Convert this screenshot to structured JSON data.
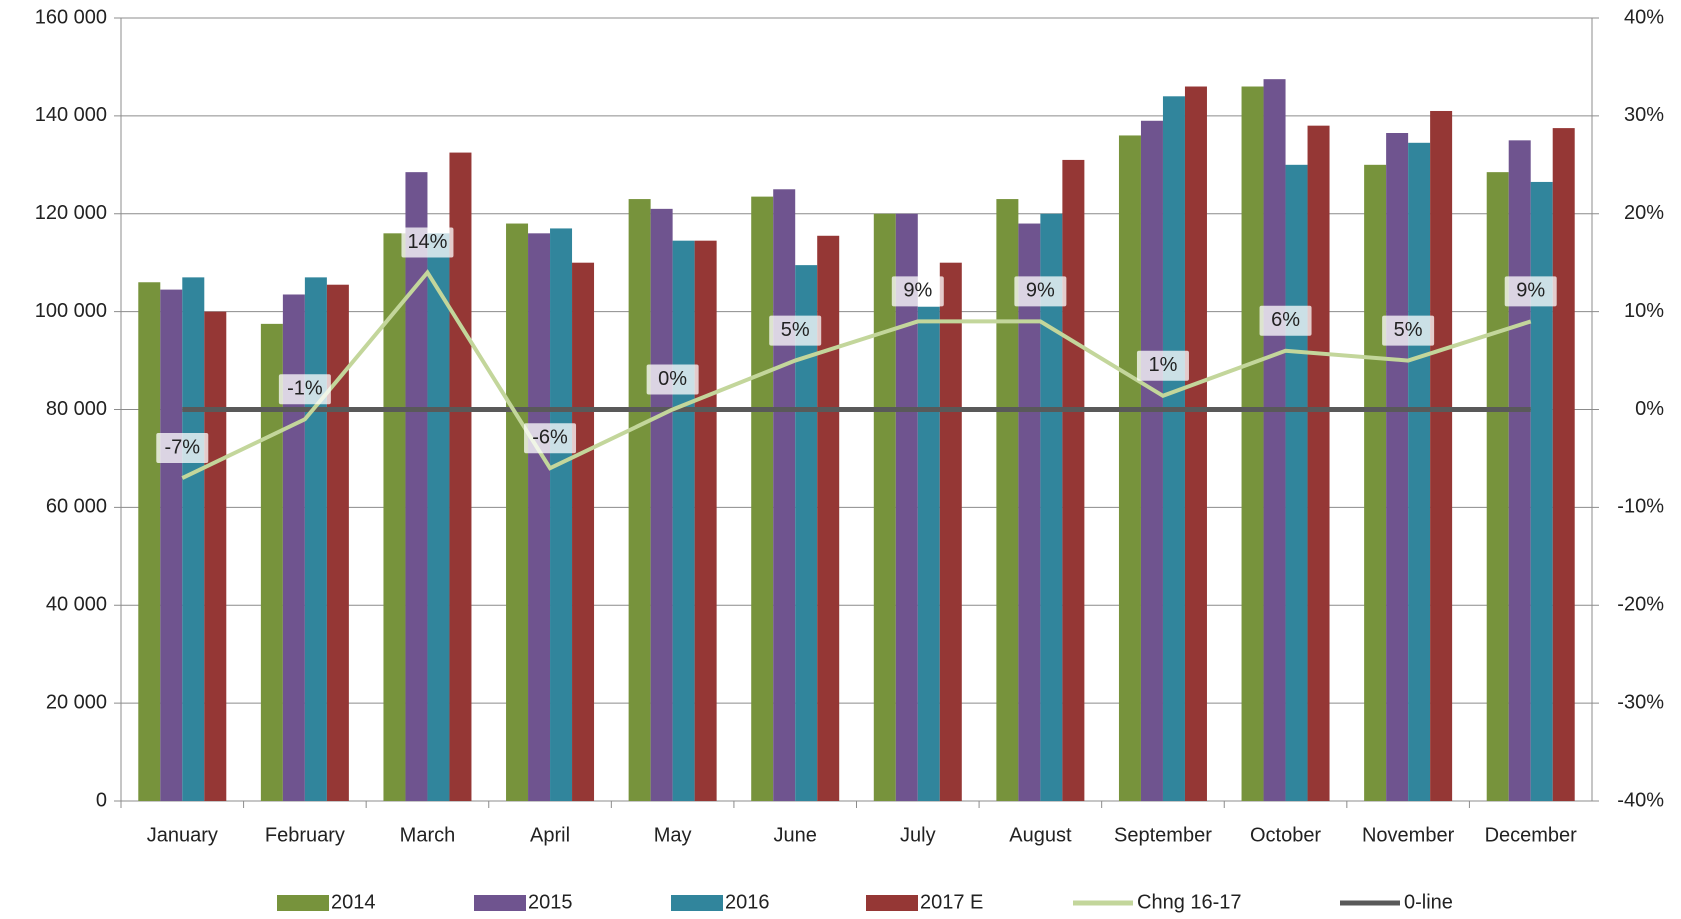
{
  "chart_data": {
    "type": "bar",
    "categories": [
      "January",
      "February",
      "March",
      "April",
      "May",
      "June",
      "July",
      "August",
      "September",
      "October",
      "November",
      "December"
    ],
    "series": [
      {
        "name": "2014",
        "color": "#77933c",
        "values": [
          106000,
          97500,
          116000,
          118000,
          123000,
          123500,
          120000,
          123000,
          136000,
          146000,
          130000,
          128500
        ]
      },
      {
        "name": "2015",
        "color": "#6f548f",
        "values": [
          104500,
          103500,
          128500,
          116000,
          121000,
          125000,
          120000,
          118000,
          139000,
          147500,
          136500,
          135000
        ]
      },
      {
        "name": "2016",
        "color": "#31859c",
        "values": [
          107000,
          107000,
          116000,
          117000,
          114500,
          109500,
          101000,
          120000,
          144000,
          130000,
          134500,
          126500
        ]
      },
      {
        "name": "2017 E",
        "color": "#953735",
        "values": [
          100000,
          105500,
          132500,
          110000,
          114500,
          115500,
          110000,
          131000,
          146000,
          138000,
          141000,
          137500
        ]
      },
      {
        "name": "Chng  16-17",
        "type": "line",
        "axis": "y2",
        "color": "#c3d69b",
        "values": [
          -7,
          -1,
          14,
          -6,
          0,
          5,
          9,
          9,
          1.4,
          6,
          5,
          9
        ],
        "value_labels": [
          "-7%",
          "-1%",
          "14%",
          "-6%",
          "0%",
          "5%",
          "9%",
          "9%",
          "1%",
          "6%",
          "5%",
          "9%"
        ]
      },
      {
        "name": "0-line",
        "type": "line",
        "axis": "y2",
        "color": "#595959",
        "values": [
          0,
          0,
          0,
          0,
          0,
          0,
          0,
          0,
          0,
          0,
          0,
          0
        ]
      }
    ],
    "ylim": [
      0,
      160000
    ],
    "yticks": [
      0,
      {
        "value": 20000,
        "label": "20 000"
      },
      {
        "value": 40000,
        "label": "40 000"
      },
      {
        "value": 60000,
        "label": "60 000"
      },
      {
        "value": 80000,
        "label": "80 000"
      },
      {
        "value": 100000,
        "label": "100 000"
      },
      {
        "value": 120000,
        "label": "120 000"
      },
      {
        "value": 140000,
        "label": "140 000"
      },
      {
        "value": 160000,
        "label": "160 000"
      }
    ],
    "y2lim": [
      -40,
      40
    ],
    "y2ticks": [
      {
        "value": -40,
        "label": "-40%"
      },
      {
        "value": -30,
        "label": "-30%"
      },
      {
        "value": -20,
        "label": "-20%"
      },
      {
        "value": -10,
        "label": "-10%"
      },
      {
        "value": 0,
        "label": "0%"
      },
      {
        "value": 10,
        "label": "10%"
      },
      {
        "value": 20,
        "label": "20%"
      },
      {
        "value": 30,
        "label": "30%"
      },
      {
        "value": 40,
        "label": "40%"
      }
    ],
    "grid": true,
    "legend": "bottom"
  }
}
